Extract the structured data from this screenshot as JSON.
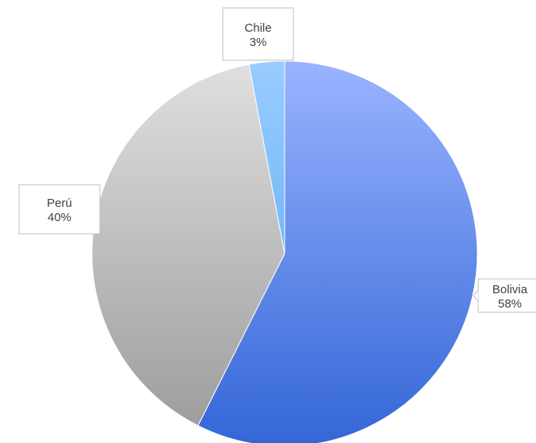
{
  "chart_data": {
    "type": "pie",
    "slices": [
      {
        "label": "Bolivia",
        "value": 58,
        "percent_text": "58%",
        "color_light": "#99b3ff",
        "color_dark": "#3366d6"
      },
      {
        "label": "Perú",
        "value": 40,
        "percent_text": "40%",
        "color_light": "#e0e0e0",
        "color_dark": "#9a9a9a"
      },
      {
        "label": "Chile",
        "value": 3,
        "percent_text": "3%",
        "color_light": "#99ccff",
        "color_dark": "#4ea3f0"
      }
    ],
    "start_angle_deg": 0,
    "direction": "clockwise",
    "legend": "none",
    "data_labels": "callout"
  }
}
